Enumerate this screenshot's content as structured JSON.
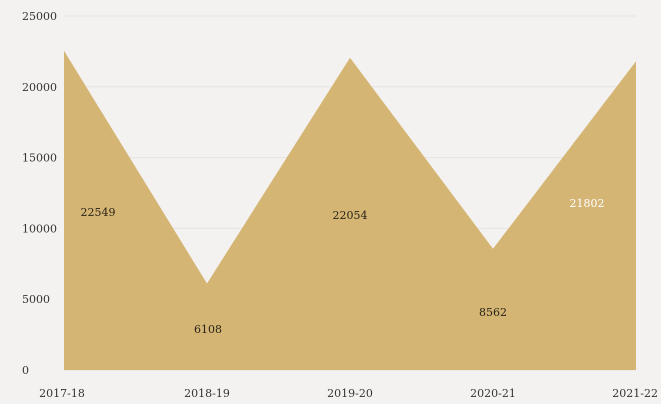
{
  "chart_data": {
    "type": "area",
    "title": "",
    "xlabel": "",
    "ylabel": "",
    "categories": [
      "2017-18",
      "2018-19",
      "2019-20",
      "2020-21",
      "2021-22"
    ],
    "values": [
      22549,
      6108,
      22054,
      8562,
      21802
    ],
    "data_labels": [
      "22549",
      "6108",
      "22054",
      "8562",
      "21802"
    ],
    "ylim": [
      0,
      25000
    ],
    "yticks": [
      0,
      5000,
      10000,
      15000,
      20000,
      25000
    ],
    "ytick_labels": [
      "0",
      "5000",
      "10000",
      "15000",
      "20000",
      "25000"
    ],
    "grid": true,
    "legend": "none",
    "colors": {
      "area": "#d4b574",
      "grid": "#e6e3e1",
      "label_dark": "#2a2418",
      "label_light": "#ffffff"
    }
  }
}
